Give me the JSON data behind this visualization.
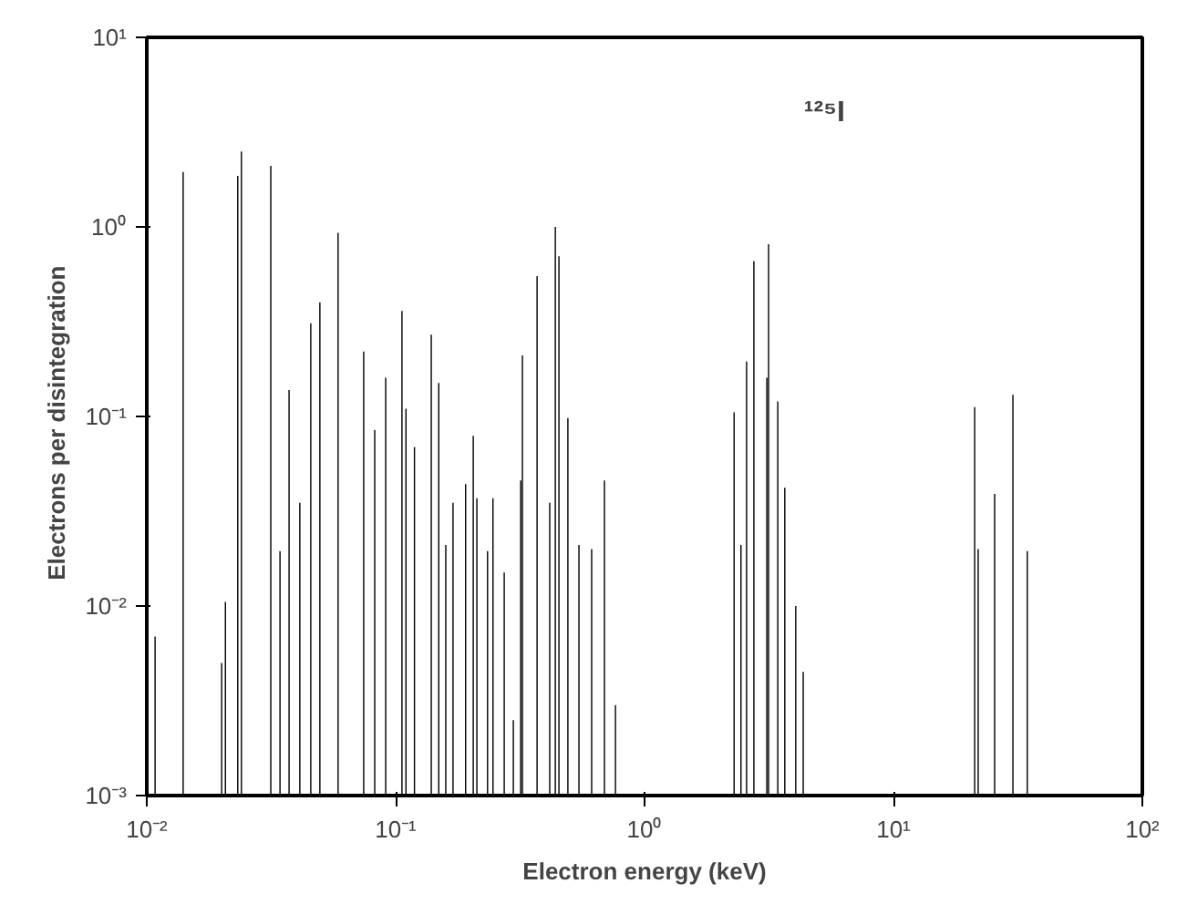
{
  "chart_data": {
    "type": "bar",
    "xlabel": "Electron energy (keV)",
    "ylabel": "Electrons  per  disintegration",
    "annotations": [
      "¹²⁵I"
    ],
    "log": "xy",
    "grid": false,
    "xlim": [
      0.01,
      100
    ],
    "ylim": [
      0.001,
      10
    ],
    "xticks": [
      {
        "value": 0.01,
        "label": "10⁻²"
      },
      {
        "value": 0.1,
        "label": "10⁻¹"
      },
      {
        "value": 1,
        "label": "10⁰"
      },
      {
        "value": 10,
        "label": "10¹"
      },
      {
        "value": 100,
        "label": "10²"
      }
    ],
    "yticks": [
      {
        "value": 0.001,
        "label": "10⁻³"
      },
      {
        "value": 0.01,
        "label": "10⁻²"
      },
      {
        "value": 0.1,
        "label": "10⁻¹"
      },
      {
        "value": 1,
        "label": "10⁰"
      },
      {
        "value": 10,
        "label": "10¹"
      }
    ],
    "x": [
      0.0108,
      0.014,
      0.02,
      0.0207,
      0.0232,
      0.024,
      0.0315,
      0.0343,
      0.0373,
      0.0412,
      0.0456,
      0.0496,
      0.0587,
      0.0744,
      0.0824,
      0.0912,
      0.106,
      0.11,
      0.119,
      0.139,
      0.149,
      0.159,
      0.17,
      0.191,
      0.205,
      0.212,
      0.234,
      0.246,
      0.273,
      0.297,
      0.318,
      0.323,
      0.37,
      0.416,
      0.438,
      0.453,
      0.492,
      0.545,
      0.613,
      0.69,
      0.764,
      2.29,
      2.44,
      2.57,
      2.75,
      3.1,
      3.15,
      3.43,
      3.66,
      4.05,
      4.34,
      21.2,
      21.9,
      25.5,
      30.2,
      34.5
    ],
    "series": [
      {
        "color": "#000000",
        "values": [
          0.0069,
          1.95,
          0.005,
          0.0105,
          1.86,
          2.5,
          2.1,
          0.0195,
          0.138,
          0.035,
          0.31,
          0.4,
          0.93,
          0.22,
          0.085,
          0.16,
          0.36,
          0.11,
          0.069,
          0.27,
          0.15,
          0.021,
          0.035,
          0.044,
          0.079,
          0.037,
          0.0195,
          0.037,
          0.015,
          0.0025,
          0.046,
          0.21,
          0.55,
          0.035,
          1.0,
          0.7,
          0.098,
          0.021,
          0.02,
          0.046,
          0.003,
          0.105,
          0.021,
          0.195,
          0.66,
          0.16,
          0.81,
          0.12,
          0.042,
          0.01,
          0.0045,
          0.112,
          0.02,
          0.039,
          0.13,
          0.0195
        ]
      }
    ]
  }
}
